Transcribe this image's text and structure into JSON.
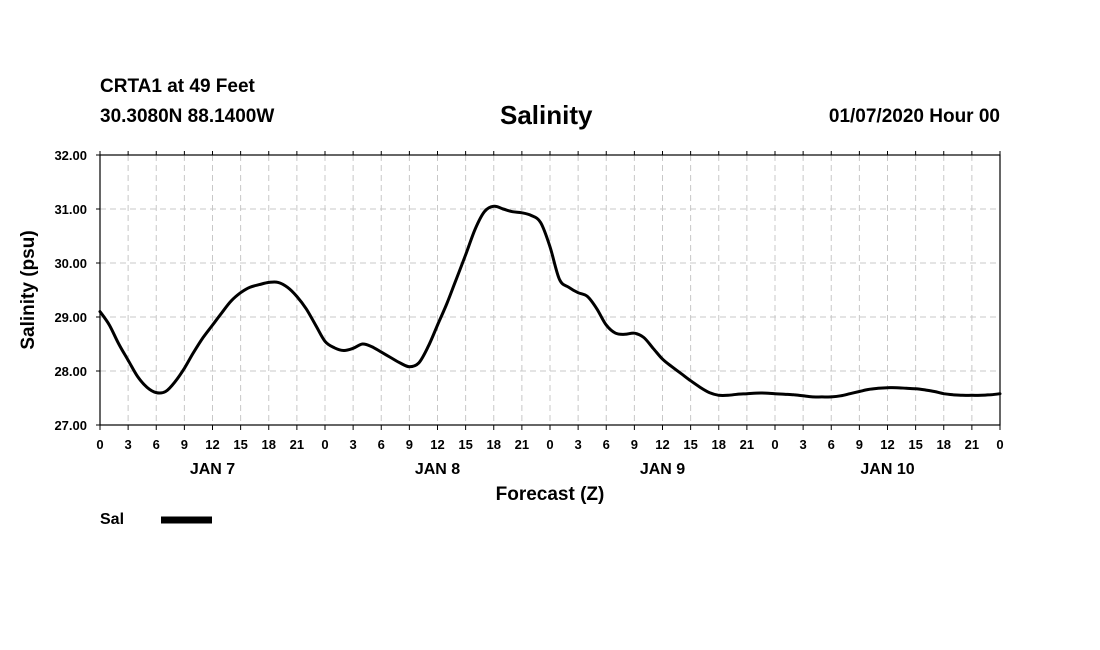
{
  "header": {
    "station": "CRTA1 at 49 Feet",
    "coords": "30.3080N 88.1400W",
    "title": "Salinity",
    "issued": "01/07/2020 Hour 00"
  },
  "chart_data": {
    "type": "line",
    "title": "Salinity",
    "xlabel": "Forecast (Z)",
    "ylabel": "Salinity (psu)",
    "ylim": [
      27.0,
      32.0
    ],
    "xlim_hours": [
      0,
      96
    ],
    "grid": true,
    "y_ticks": [
      "32.00",
      "31.00",
      "30.00",
      "29.00",
      "28.00",
      "27.00"
    ],
    "y_tick_values": [
      32,
      31,
      30,
      29,
      28,
      27
    ],
    "x_tick_labels": [
      "0",
      "3",
      "6",
      "9",
      "12",
      "15",
      "18",
      "21",
      "0",
      "3",
      "6",
      "9",
      "12",
      "15",
      "18",
      "21",
      "0",
      "3",
      "6",
      "9",
      "12",
      "15",
      "18",
      "21",
      "0",
      "3",
      "6",
      "9",
      "12",
      "15",
      "18",
      "21",
      "0"
    ],
    "x_tick_hours": [
      0,
      3,
      6,
      9,
      12,
      15,
      18,
      21,
      24,
      27,
      30,
      33,
      36,
      39,
      42,
      45,
      48,
      51,
      54,
      57,
      60,
      63,
      66,
      69,
      72,
      75,
      78,
      81,
      84,
      87,
      90,
      93,
      96
    ],
    "day_labels": [
      {
        "label": "JAN 7",
        "hour": 12
      },
      {
        "label": "JAN 8",
        "hour": 36
      },
      {
        "label": "JAN 9",
        "hour": 60
      },
      {
        "label": "JAN 10",
        "hour": 84
      }
    ],
    "legend_position": "bottom-left",
    "series": [
      {
        "name": "Sal",
        "color": "#000000",
        "x_hours": [
          0,
          1,
          2,
          3,
          4,
          5,
          6,
          7,
          8,
          9,
          10,
          11,
          12,
          13,
          14,
          15,
          16,
          17,
          18,
          19,
          20,
          21,
          22,
          23,
          24,
          25,
          26,
          27,
          28,
          29,
          30,
          31,
          32,
          33,
          34,
          35,
          36,
          37,
          38,
          39,
          40,
          41,
          42,
          43,
          44,
          45,
          46,
          47,
          48,
          49,
          50,
          51,
          52,
          53,
          54,
          55,
          56,
          57,
          58,
          59,
          60,
          61,
          62,
          63,
          64,
          65,
          66,
          67,
          68,
          69,
          70,
          71,
          72,
          73,
          74,
          75,
          76,
          77,
          78,
          79,
          80,
          81,
          82,
          83,
          84,
          85,
          86,
          87,
          88,
          89,
          90,
          91,
          92,
          93,
          94,
          95,
          96
        ],
        "values": [
          29.1,
          28.85,
          28.5,
          28.2,
          27.9,
          27.7,
          27.6,
          27.62,
          27.8,
          28.05,
          28.35,
          28.62,
          28.85,
          29.08,
          29.3,
          29.45,
          29.55,
          29.6,
          29.64,
          29.64,
          29.55,
          29.38,
          29.15,
          28.85,
          28.55,
          28.43,
          28.38,
          28.42,
          28.5,
          28.45,
          28.35,
          28.25,
          28.15,
          28.08,
          28.15,
          28.45,
          28.85,
          29.25,
          29.7,
          30.15,
          30.62,
          30.95,
          31.05,
          31.0,
          30.95,
          30.93,
          30.88,
          30.75,
          30.3,
          29.7,
          29.55,
          29.45,
          29.38,
          29.15,
          28.85,
          28.7,
          28.68,
          28.7,
          28.62,
          28.42,
          28.22,
          28.08,
          27.95,
          27.82,
          27.7,
          27.6,
          27.55,
          27.55,
          27.57,
          27.58,
          27.59,
          27.59,
          27.58,
          27.57,
          27.56,
          27.54,
          27.52,
          27.52,
          27.52,
          27.54,
          27.58,
          27.62,
          27.66,
          27.68,
          27.69,
          27.69,
          27.68,
          27.67,
          27.65,
          27.62,
          27.58,
          27.56,
          27.55,
          27.55,
          27.55,
          27.56,
          27.58
        ]
      }
    ]
  },
  "legend": {
    "label": "Sal"
  }
}
